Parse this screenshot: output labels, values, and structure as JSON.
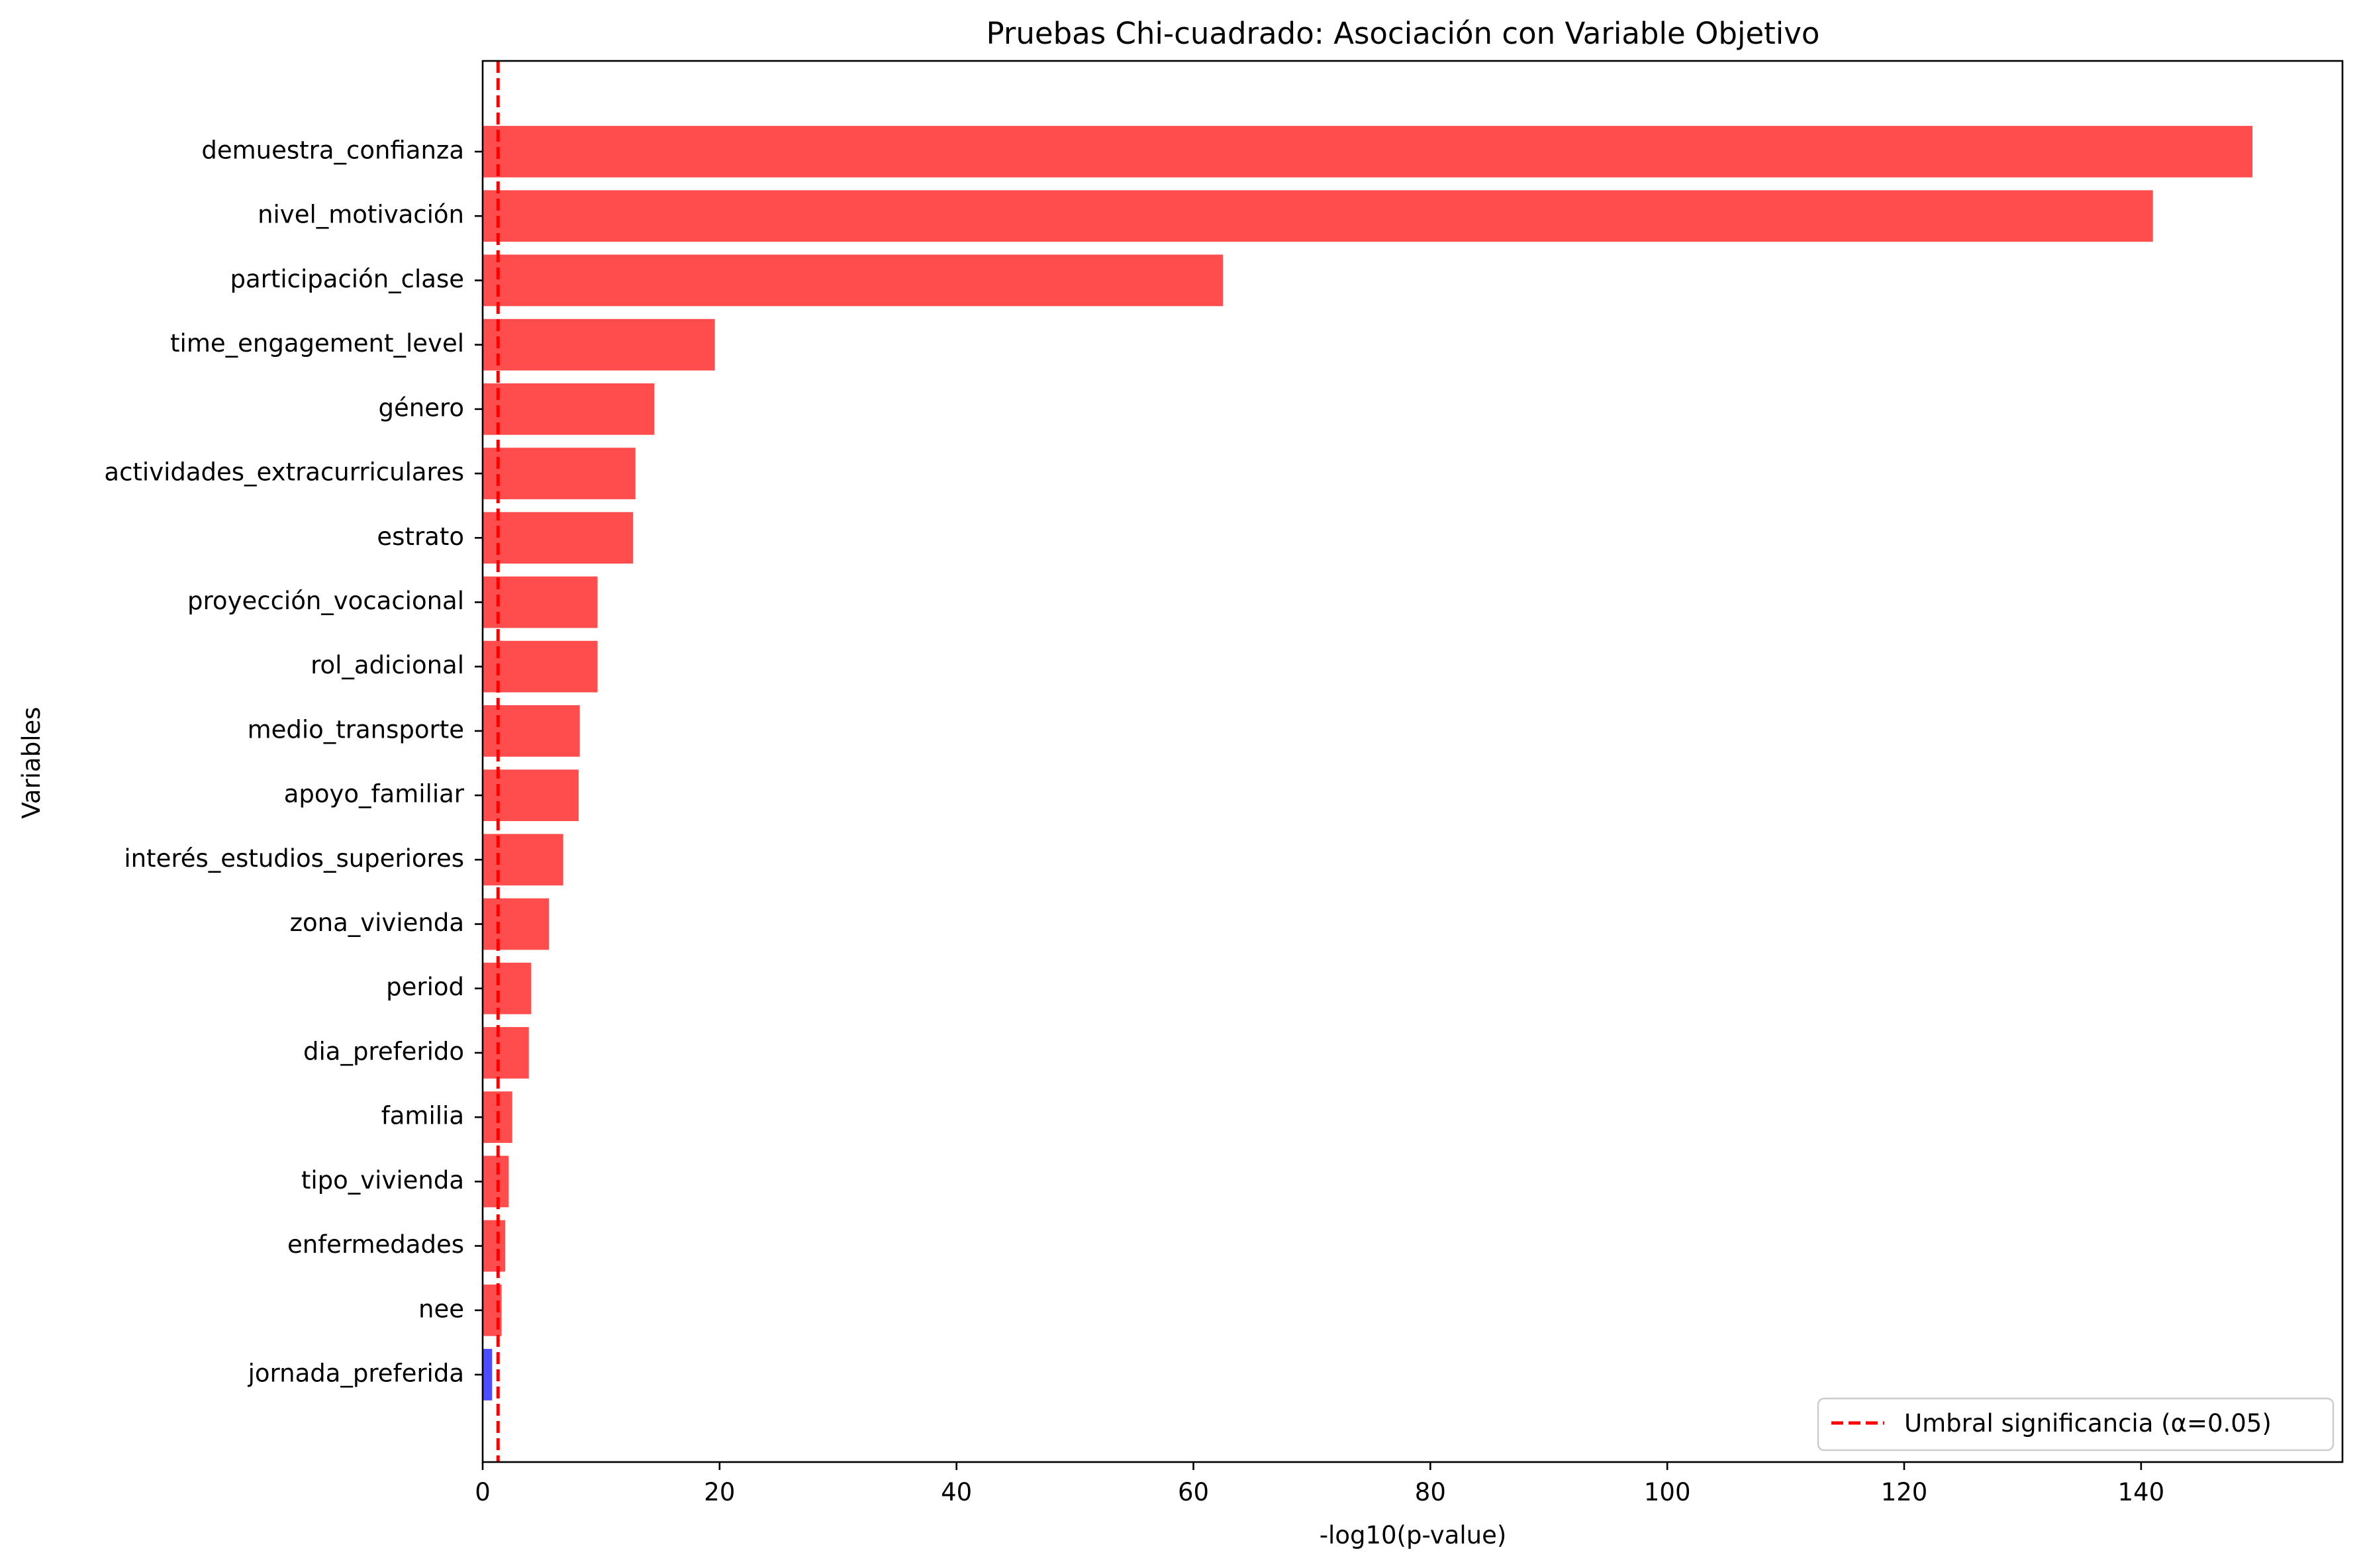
{
  "chart_data": {
    "type": "bar",
    "orientation": "horizontal",
    "title": "Pruebas Chi-cuadrado: Asociación con Variable Objetivo",
    "xlabel": "-log10(p-value)",
    "ylabel": "Variables",
    "xlim": [
      0,
      157
    ],
    "xticks": [
      0,
      20,
      40,
      60,
      80,
      100,
      120,
      140
    ],
    "grid": false,
    "legend_position": "lower-right",
    "categories": [
      "demuestra_confianza",
      "nivel_motivación",
      "participación_clase",
      "time_engagement_level",
      "género",
      "actividades_extracurriculares",
      "estrato",
      "proyección_vocacional",
      "rol_adicional",
      "medio_transporte",
      "apoyo_familiar",
      "interés_estudios_superiores",
      "zona_vivienda",
      "period",
      "dia_preferido",
      "familia",
      "tipo_vivienda",
      "enfermedades",
      "nee",
      "jornada_preferida"
    ],
    "values": [
      149.4,
      141.0,
      62.5,
      19.6,
      14.5,
      12.9,
      12.7,
      9.7,
      9.7,
      8.2,
      8.1,
      6.8,
      5.6,
      4.1,
      3.9,
      2.5,
      2.2,
      1.9,
      1.6,
      0.8
    ],
    "significance_threshold": {
      "value": 1.30103,
      "label": "Umbral significancia (α=0.05)",
      "color": "#ff0000",
      "style": "dashed"
    },
    "colors": {
      "significant": "#ff4d4d",
      "not_significant": "#4d4dff"
    }
  }
}
